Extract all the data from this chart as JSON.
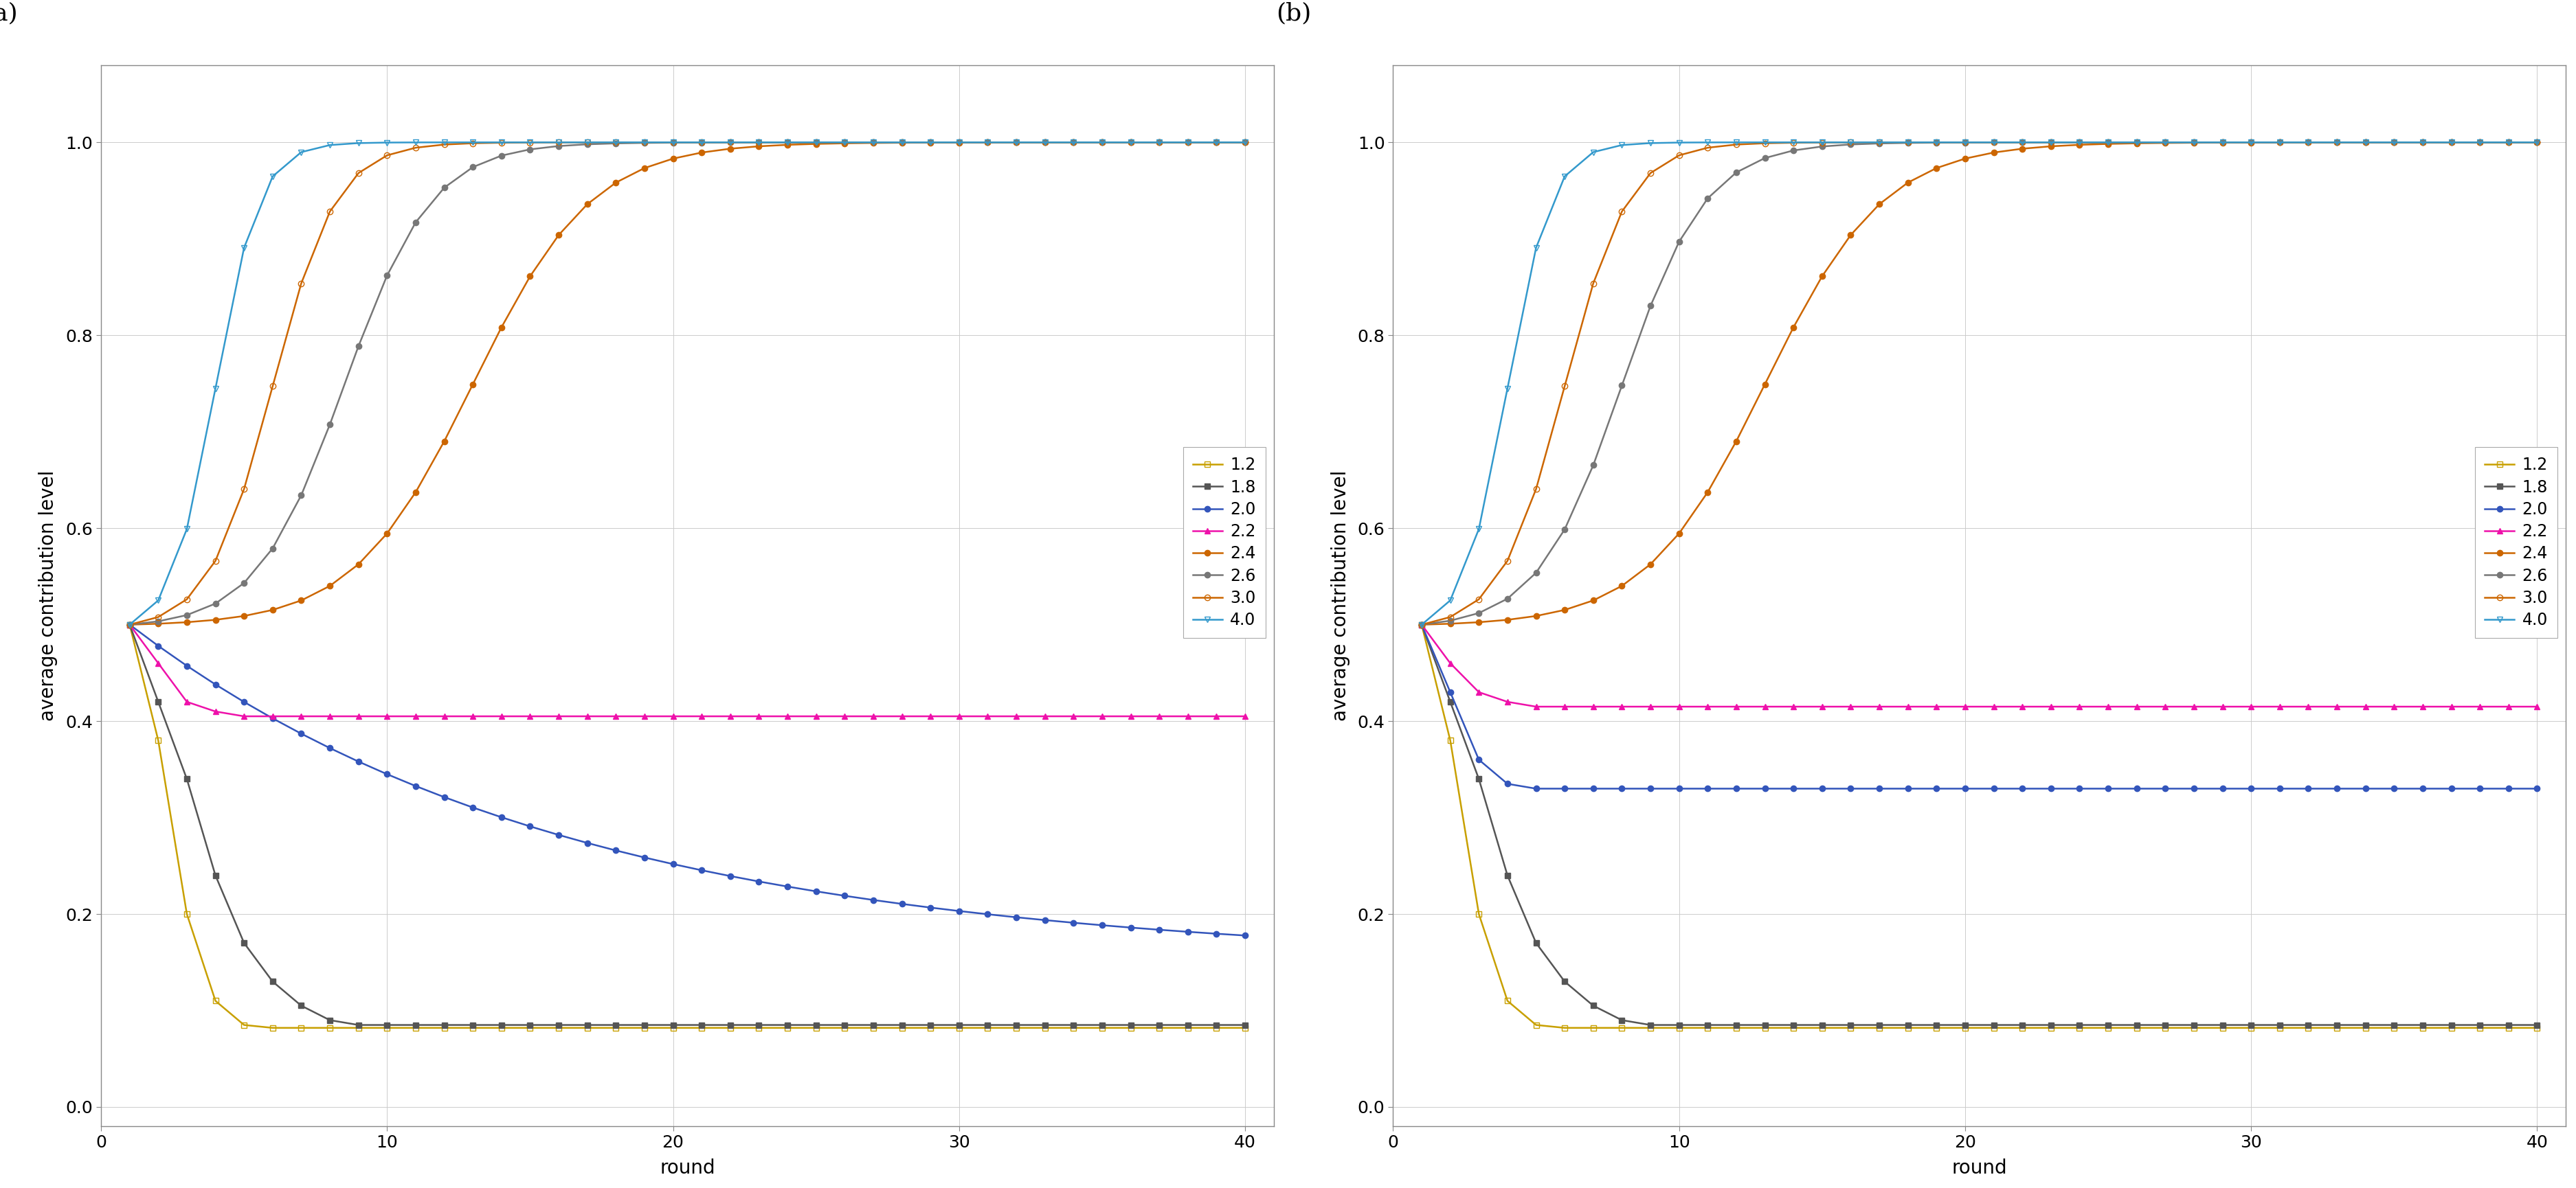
{
  "title_a": "(a)",
  "title_b": "(b)",
  "xlabel": "round",
  "ylabel": "average contribution level",
  "xlim": [
    0,
    41
  ],
  "ylim": [
    -0.02,
    1.08
  ],
  "yticks": [
    0.0,
    0.2,
    0.4,
    0.6,
    0.8,
    1.0
  ],
  "xticks": [
    0,
    10,
    20,
    30,
    40
  ],
  "legend_labels": [
    "1.2",
    "1.8",
    "2.0",
    "2.2",
    "2.4",
    "2.6",
    "3.0",
    "4.0"
  ],
  "series": [
    {
      "label": "1.2",
      "color": "#c8a000",
      "marker": "s",
      "filled": false,
      "mec": "#c8a000"
    },
    {
      "label": "1.8",
      "color": "#555555",
      "marker": "s",
      "filled": true,
      "mec": "#555555"
    },
    {
      "label": "2.0",
      "color": "#3355bb",
      "marker": "o",
      "filled": true,
      "mec": "#3355bb"
    },
    {
      "label": "2.2",
      "color": "#ee11aa",
      "marker": "^",
      "filled": true,
      "mec": "#ee11aa"
    },
    {
      "label": "2.4",
      "color": "#cc6600",
      "marker": "o",
      "filled": true,
      "mec": "#cc6600"
    },
    {
      "label": "2.6",
      "color": "#777777",
      "marker": "o",
      "filled": true,
      "mec": "#777777"
    },
    {
      "label": "3.0",
      "color": "#cc6600",
      "marker": "o",
      "filled": false,
      "mec": "#cc6600"
    },
    {
      "label": "4.0",
      "color": "#3399cc",
      "marker": "v",
      "filled": false,
      "mec": "#3399cc"
    }
  ],
  "bg_color": "#ffffff",
  "plot_bg": "#ffffff",
  "grid_color": "#cccccc",
  "spine_color": "#888888",
  "tick_fontsize": 18,
  "label_fontsize": 20,
  "legend_fontsize": 17,
  "panel_label_fontsize": 26,
  "linewidth": 1.8,
  "markersize": 6
}
